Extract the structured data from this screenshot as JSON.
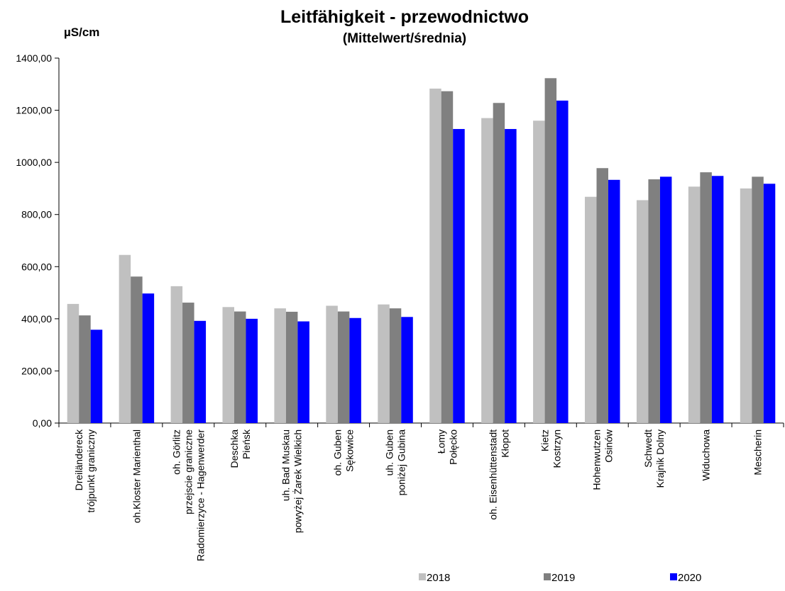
{
  "chart_data": {
    "type": "bar",
    "title": "Leitfähigkeit - przewodnictwo",
    "subtitle": "(Mittelwert/średnia)",
    "ylabel": "µS/cm",
    "ylim": [
      0,
      1400
    ],
    "yticks": [
      0,
      200,
      400,
      600,
      800,
      1000,
      1200,
      1400
    ],
    "ytick_labels": [
      "0,00",
      "200,00",
      "400,00",
      "600,00",
      "800,00",
      "1000,00",
      "1200,00",
      "1400,00"
    ],
    "grid": false,
    "legend_position": "bottom-right",
    "categories": [
      [
        "Dreiländereck",
        "trójpunkt graniczny"
      ],
      [
        "oh.Kloster Marienthal"
      ],
      [
        "oh. Görlitz",
        "przejscie graniczne",
        "Radomierzyce - Hagenwerder"
      ],
      [
        "Deschka",
        "Pieńsk"
      ],
      [
        "uh. Bad Muskau",
        "powyżej Żarek Wielkich"
      ],
      [
        "oh. Guben",
        "Sękowice"
      ],
      [
        "uh. Guben",
        "poniżej Gubina"
      ],
      [
        "Łomy",
        "Połęcko"
      ],
      [
        "oh. Eisenhüttenstadt",
        "Kłopot"
      ],
      [
        "Kietz",
        "Kostrzyn"
      ],
      [
        "Hohenwutzen",
        "Osinów"
      ],
      [
        "Schwedt",
        "Krajnik Dolny"
      ],
      [
        "Widuchowa"
      ],
      [
        "Mescherin"
      ]
    ],
    "series": [
      {
        "name": "2018",
        "color": "#c0c0c0",
        "values": [
          457,
          645,
          525,
          445,
          440,
          450,
          455,
          1283,
          1170,
          1160,
          868,
          855,
          907,
          900
        ]
      },
      {
        "name": "2019",
        "color": "#808080",
        "values": [
          413,
          562,
          462,
          428,
          427,
          428,
          440,
          1273,
          1228,
          1323,
          978,
          935,
          962,
          945
        ]
      },
      {
        "name": "2020",
        "color": "#0000ff",
        "values": [
          358,
          497,
          392,
          400,
          390,
          403,
          407,
          1128,
          1128,
          1237,
          933,
          945,
          948,
          918
        ]
      }
    ]
  }
}
